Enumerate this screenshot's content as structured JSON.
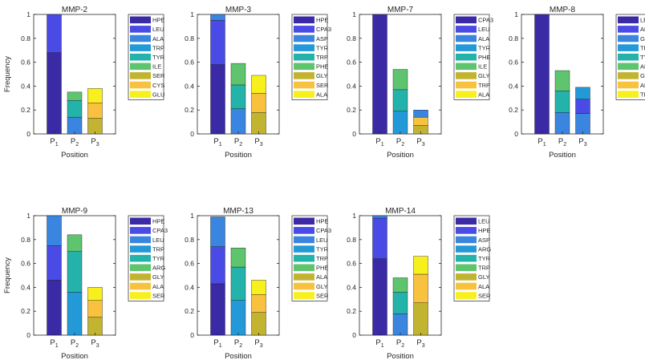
{
  "figure": {
    "y_label": "Frequency",
    "x_label": "Position"
  },
  "chart_data": [
    {
      "type": "bar",
      "stacked": true,
      "title": "MMP-2",
      "categories": [
        "P1",
        "P2",
        "P3"
      ],
      "xlabel": "Position",
      "ylabel": "Frequency",
      "ylim": [
        0,
        1
      ],
      "yticks": [
        "0",
        "0.2",
        "0.4",
        "0.6",
        "0.8",
        "1"
      ],
      "legend": [
        "HPE",
        "LEU",
        "ALA",
        "TRP",
        "TYR",
        "ILE",
        "SER",
        "CYS",
        "GLU"
      ],
      "stacks": [
        [
          {
            "residue": "HPE",
            "value": 0.68
          },
          {
            "residue": "LEU",
            "value": 0.32
          }
        ],
        [
          {
            "residue": "ALA",
            "value": 0.14
          },
          {
            "residue": "TYR",
            "value": 0.14
          },
          {
            "residue": "ILE",
            "value": 0.07
          }
        ],
        [
          {
            "residue": "SER",
            "value": 0.13
          },
          {
            "residue": "CYS",
            "value": 0.13
          },
          {
            "residue": "GLU",
            "value": 0.12
          }
        ]
      ]
    },
    {
      "type": "bar",
      "stacked": true,
      "title": "MMP-3",
      "categories": [
        "P1",
        "P2",
        "P3"
      ],
      "xlabel": "Position",
      "ylabel": "",
      "ylim": [
        0,
        1
      ],
      "yticks": [
        "0",
        "0.2",
        "0.4",
        "0.6",
        "0.8",
        "1"
      ],
      "legend": [
        "HPE",
        "CPA3",
        "ASP",
        "TYR",
        "TRP",
        "PHE",
        "GLY",
        "SER",
        "ALA"
      ],
      "stacks": [
        [
          {
            "residue": "HPE",
            "value": 0.58
          },
          {
            "residue": "CPA3",
            "value": 0.37
          },
          {
            "residue": "ASP",
            "value": 0.05
          }
        ],
        [
          {
            "residue": "ASP",
            "value": 0.21
          },
          {
            "residue": "TRP",
            "value": 0.2
          },
          {
            "residue": "PHE",
            "value": 0.18
          }
        ],
        [
          {
            "residue": "GLY",
            "value": 0.18
          },
          {
            "residue": "SER",
            "value": 0.16
          },
          {
            "residue": "ALA",
            "value": 0.15
          }
        ]
      ]
    },
    {
      "type": "bar",
      "stacked": true,
      "title": "MMP-7",
      "categories": [
        "P1",
        "P2",
        "P3"
      ],
      "xlabel": "Position",
      "ylabel": "",
      "ylim": [
        0,
        1
      ],
      "yticks": [
        "0",
        "0.2",
        "0.4",
        "0.6",
        "0.8",
        "1"
      ],
      "legend": [
        "CPA3",
        "LEU",
        "ALA",
        "TYR",
        "PHE",
        "ILE",
        "GLY",
        "TRP",
        "ALA"
      ],
      "stacks": [
        [
          {
            "residue": "CPA3",
            "value": 1.0
          }
        ],
        [
          {
            "residue": "TYR",
            "value": 0.19
          },
          {
            "residue": "PHE",
            "value": 0.18
          },
          {
            "residue": "ILE",
            "value": 0.17
          }
        ],
        [
          {
            "residue": "GLY",
            "value": 0.07
          },
          {
            "residue": "TRP",
            "value": 0.07
          },
          {
            "residue": "ALA",
            "value": 0.06
          }
        ]
      ]
    },
    {
      "type": "bar",
      "stacked": true,
      "title": "MMP-8",
      "categories": [
        "P1",
        "P2",
        "P3"
      ],
      "xlabel": "Position",
      "ylabel": "",
      "ylim": [
        0,
        1
      ],
      "yticks": [
        "0",
        "0.2",
        "0.4",
        "0.6",
        "0.8",
        "1"
      ],
      "legend": [
        "LEU",
        "ALA",
        "GLY",
        "TRP",
        "TYR",
        "ARG",
        "GLY",
        "ALA",
        "TRP"
      ],
      "stacks": [
        [
          {
            "residue": "LEU",
            "value": 1.0
          }
        ],
        [
          {
            "residue": "GLY",
            "value": 0.18
          },
          {
            "residue": "TYR",
            "value": 0.18
          },
          {
            "residue": "ARG",
            "value": 0.17
          }
        ],
        [
          {
            "residue": "GLY",
            "value": 0.17
          },
          {
            "residue": "ALA",
            "value": 0.12
          },
          {
            "residue": "TRP",
            "value": 0.1
          }
        ]
      ]
    },
    {
      "type": "bar",
      "stacked": true,
      "title": "MMP-9",
      "categories": [
        "P1",
        "P2",
        "P3"
      ],
      "xlabel": "Position",
      "ylabel": "Frequency",
      "ylim": [
        0,
        1
      ],
      "yticks": [
        "0",
        "0.2",
        "0.4",
        "0.6",
        "0.8",
        "1"
      ],
      "legend": [
        "HPE",
        "CPA3",
        "LEU",
        "TRP",
        "TYR",
        "ARG",
        "GLY",
        "ALA",
        "SER"
      ],
      "stacks": [
        [
          {
            "residue": "HPE",
            "value": 0.46
          },
          {
            "residue": "CPA3",
            "value": 0.29
          },
          {
            "residue": "LEU",
            "value": 0.25
          }
        ],
        [
          {
            "residue": "TRP",
            "value": 0.36
          },
          {
            "residue": "TYR",
            "value": 0.34
          },
          {
            "residue": "ARG",
            "value": 0.14
          }
        ],
        [
          {
            "residue": "GLY",
            "value": 0.15
          },
          {
            "residue": "ALA",
            "value": 0.14
          },
          {
            "residue": "SER",
            "value": 0.11
          }
        ]
      ]
    },
    {
      "type": "bar",
      "stacked": true,
      "title": "MMP-13",
      "categories": [
        "P1",
        "P2",
        "P3"
      ],
      "xlabel": "Position",
      "ylabel": "",
      "ylim": [
        0,
        1
      ],
      "yticks": [
        "0",
        "0.2",
        "0.4",
        "0.6",
        "0.8",
        "1"
      ],
      "legend": [
        "HPE",
        "CPA3",
        "LEU",
        "TYR",
        "TRP",
        "PHE",
        "ALA",
        "GLY",
        "SER"
      ],
      "stacks": [
        [
          {
            "residue": "HPE",
            "value": 0.43
          },
          {
            "residue": "CPA3",
            "value": 0.31
          },
          {
            "residue": "LEU",
            "value": 0.25
          }
        ],
        [
          {
            "residue": "TYR",
            "value": 0.29
          },
          {
            "residue": "TRP",
            "value": 0.28
          },
          {
            "residue": "PHE",
            "value": 0.16
          }
        ],
        [
          {
            "residue": "ALA",
            "value": 0.19
          },
          {
            "residue": "GLY",
            "value": 0.15
          },
          {
            "residue": "SER",
            "value": 0.12
          }
        ]
      ]
    },
    {
      "type": "bar",
      "stacked": true,
      "title": "MMP-14",
      "categories": [
        "P1",
        "P2",
        "P3"
      ],
      "xlabel": "Position",
      "ylabel": "",
      "ylim": [
        0,
        1
      ],
      "yticks": [
        "0",
        "0.2",
        "0.4",
        "0.6",
        "0.8",
        "1"
      ],
      "legend": [
        "LEU",
        "HPE",
        "ASP",
        "ARG",
        "TYR",
        "TRP",
        "GLY",
        "ALA",
        "SER"
      ],
      "stacks": [
        [
          {
            "residue": "LEU",
            "value": 0.64
          },
          {
            "residue": "HPE",
            "value": 0.34
          },
          {
            "residue": "ASP",
            "value": 0.02
          }
        ],
        [
          {
            "residue": "ASP",
            "value": 0.18
          },
          {
            "residue": "TYR",
            "value": 0.18
          },
          {
            "residue": "TRP",
            "value": 0.12
          }
        ],
        [
          {
            "residue": "GLY",
            "value": 0.27
          },
          {
            "residue": "ALA",
            "value": 0.24
          },
          {
            "residue": "SER",
            "value": 0.15
          }
        ]
      ]
    }
  ],
  "palette": [
    "#3b2aa6",
    "#4a4be6",
    "#3a85e0",
    "#2399d8",
    "#24b3ab",
    "#5ec46e",
    "#c2b430",
    "#f8c23e",
    "#f7f01d"
  ]
}
